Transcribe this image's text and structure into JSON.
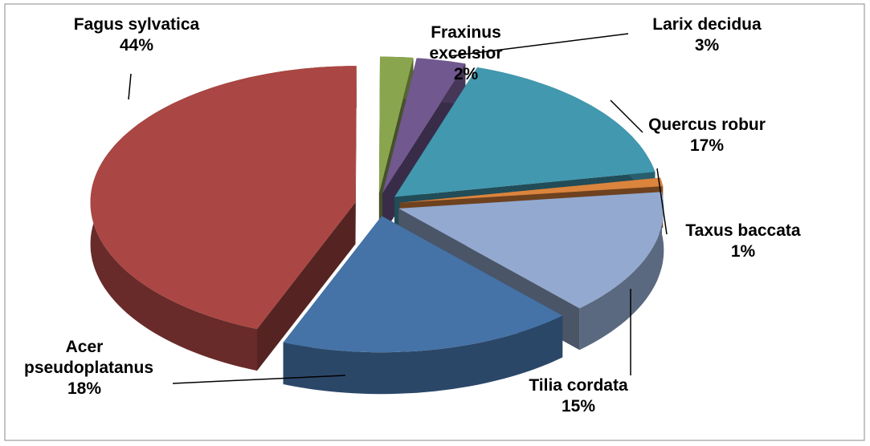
{
  "chart_data": {
    "type": "pie",
    "explode": true,
    "three_d": true,
    "categories": [
      "Acer pseudoplatanus",
      "Fagus sylvatica",
      "Fraxinus excelsior",
      "Larix decidua",
      "Quercus robur",
      "Taxus baccata",
      "Tilia cordata"
    ],
    "values": [
      18,
      44,
      2,
      3,
      17,
      1,
      15
    ],
    "value_labels": [
      "18%",
      "44%",
      "2%",
      "3%",
      "17%",
      "1%",
      "15%"
    ],
    "colors": [
      "#4573a7",
      "#aa4643",
      "#89a54e",
      "#71588f",
      "#4198af",
      "#db843d",
      "#93a9cf"
    ]
  }
}
